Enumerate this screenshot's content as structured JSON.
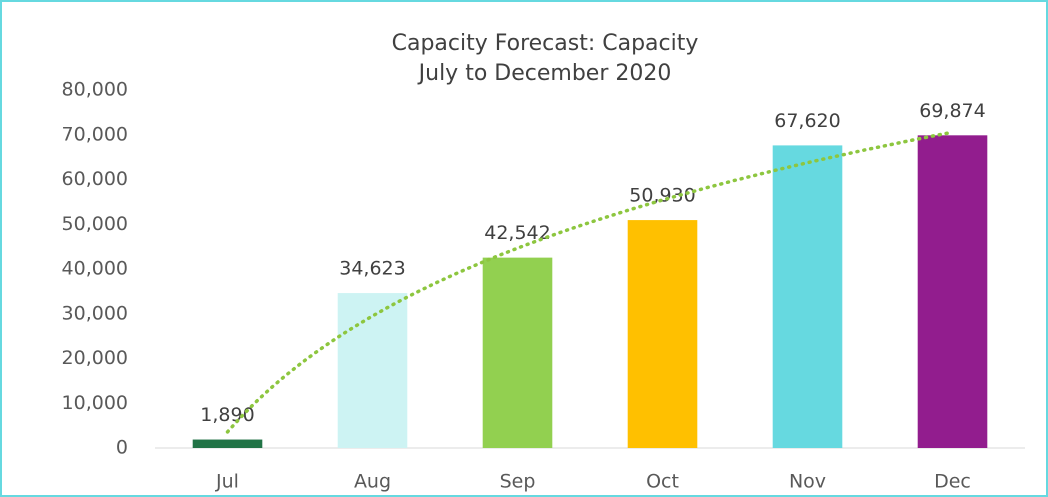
{
  "chart_data": {
    "type": "bar",
    "title": "Capacity Forecast: Capacity",
    "subtitle": "July to December 2020",
    "categories": [
      "Jul",
      "Aug",
      "Sep",
      "Oct",
      "Nov",
      "Dec"
    ],
    "values": [
      1890,
      34623,
      42542,
      50930,
      67620,
      69874
    ],
    "value_labels": [
      "1,890",
      "34,623",
      "42,542",
      "50,930",
      "67,620",
      "69,874"
    ],
    "colors": [
      "#217346",
      "#cdf3f3",
      "#92d050",
      "#ffc000",
      "#66d9e0",
      "#921d8e"
    ],
    "ylim": [
      0,
      80000
    ],
    "yticks": [
      0,
      {
        "value": 10000,
        "label": "10,000"
      },
      {
        "value": 20000,
        "label": "20,000"
      },
      {
        "value": 30000,
        "label": "30,000"
      },
      {
        "value": 40000,
        "label": "40,000"
      },
      {
        "value": 50000,
        "label": "50,000"
      },
      {
        "value": 60000,
        "label": "60,000"
      },
      {
        "value": 70000,
        "label": "70,000"
      },
      {
        "value": 80000,
        "label": "80,000"
      }
    ],
    "grid": false,
    "trendline": {
      "kind": "logarithmic",
      "color": "#8dc63f"
    }
  }
}
